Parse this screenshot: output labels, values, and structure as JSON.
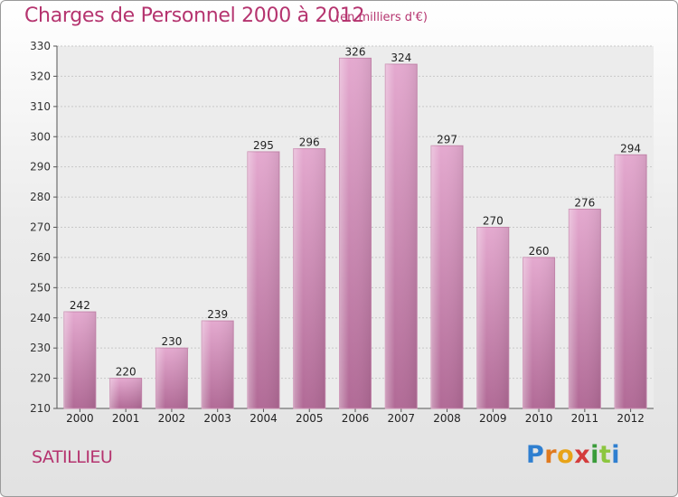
{
  "header": {
    "title": "Charges de Personnel 2000 à 2012",
    "unit": "(en milliers d'€)"
  },
  "footer": {
    "place": "SATILLIEU",
    "logo_letters": [
      "P",
      "r",
      "o",
      "x",
      "i",
      "t",
      "i"
    ],
    "logo_colors": [
      "#2f7fd0",
      "#e07a1f",
      "#e8a317",
      "#d43c3c",
      "#3a9c3a",
      "#8cc63f",
      "#2f7fd0"
    ]
  },
  "chart_data": {
    "type": "bar",
    "title": "Charges de Personnel 2000 à 2012",
    "subtitle": "(en milliers d'€)",
    "categories": [
      "2000",
      "2001",
      "2002",
      "2003",
      "2004",
      "2005",
      "2006",
      "2007",
      "2008",
      "2009",
      "2010",
      "2011",
      "2012"
    ],
    "values": [
      242,
      220,
      230,
      239,
      295,
      296,
      326,
      324,
      297,
      270,
      260,
      276,
      294
    ],
    "ylim": [
      210,
      330
    ],
    "yticks": [
      210,
      220,
      230,
      240,
      250,
      260,
      270,
      280,
      290,
      300,
      310,
      320,
      330
    ],
    "grid": true,
    "bar_color": "#d98fbb"
  }
}
